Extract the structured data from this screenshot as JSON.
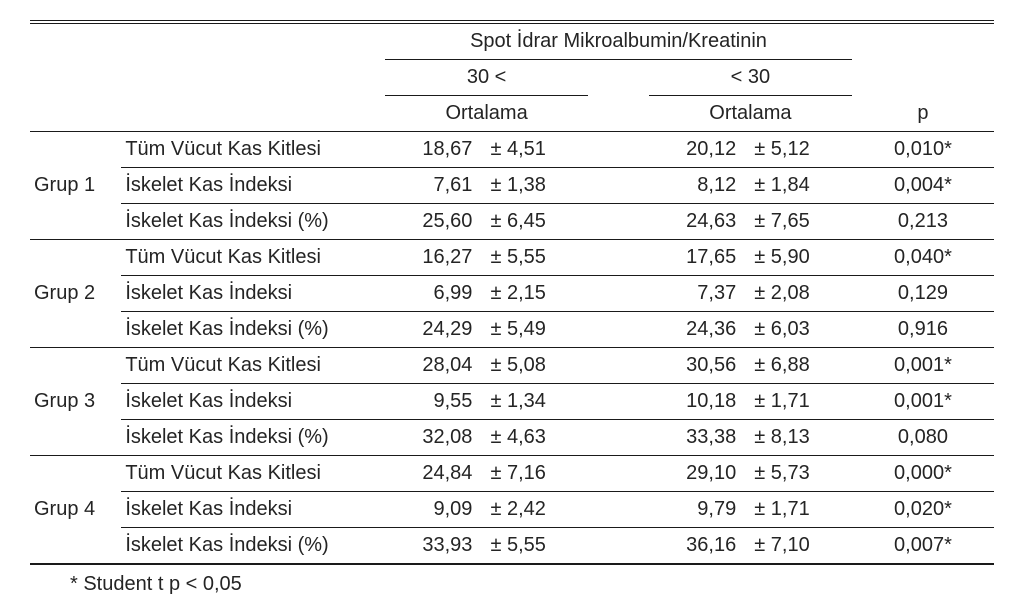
{
  "header": {
    "spanTitle": "Spot İdrar Mikroalbumin/Kreatinin",
    "col1": "30 <",
    "col2": "< 30",
    "sub": "Ortalama",
    "p": "p"
  },
  "vars": [
    "Tüm Vücut Kas Kitlesi",
    "İskelet Kas İndeksi",
    "İskelet Kas İndeksi (%)"
  ],
  "groups": [
    {
      "name": "Grup 1",
      "rows": [
        {
          "m1": "18,67",
          "s1": "± 4,51",
          "m2": "20,12",
          "s2": "± 5,12",
          "p": "0,010*"
        },
        {
          "m1": "7,61",
          "s1": "± 1,38",
          "m2": "8,12",
          "s2": "± 1,84",
          "p": "0,004*"
        },
        {
          "m1": "25,60",
          "s1": "± 6,45",
          "m2": "24,63",
          "s2": "± 7,65",
          "p": "0,213"
        }
      ]
    },
    {
      "name": "Grup 2",
      "rows": [
        {
          "m1": "16,27",
          "s1": "± 5,55",
          "m2": "17,65",
          "s2": "± 5,90",
          "p": "0,040*"
        },
        {
          "m1": "6,99",
          "s1": "± 2,15",
          "m2": "7,37",
          "s2": "± 2,08",
          "p": "0,129"
        },
        {
          "m1": "24,29",
          "s1": "± 5,49",
          "m2": "24,36",
          "s2": "± 6,03",
          "p": "0,916"
        }
      ]
    },
    {
      "name": "Grup 3",
      "rows": [
        {
          "m1": "28,04",
          "s1": "± 5,08",
          "m2": "30,56",
          "s2": "± 6,88",
          "p": "0,001*"
        },
        {
          "m1": "9,55",
          "s1": "± 1,34",
          "m2": "10,18",
          "s2": "± 1,71",
          "p": "0,001*"
        },
        {
          "m1": "32,08",
          "s1": "± 4,63",
          "m2": "33,38",
          "s2": "± 8,13",
          "p": "0,080"
        }
      ]
    },
    {
      "name": "Grup 4",
      "rows": [
        {
          "m1": "24,84",
          "s1": "± 7,16",
          "m2": "29,10",
          "s2": "± 5,73",
          "p": "0,000*"
        },
        {
          "m1": "9,09",
          "s1": "± 2,42",
          "m2": "9,79",
          "s2": "± 1,71",
          "p": "0,020*"
        },
        {
          "m1": "33,93",
          "s1": "± 5,55",
          "m2": "36,16",
          "s2": "± 7,10",
          "p": "0,007*"
        }
      ]
    }
  ],
  "footnote": "* Student t  p < 0,05"
}
